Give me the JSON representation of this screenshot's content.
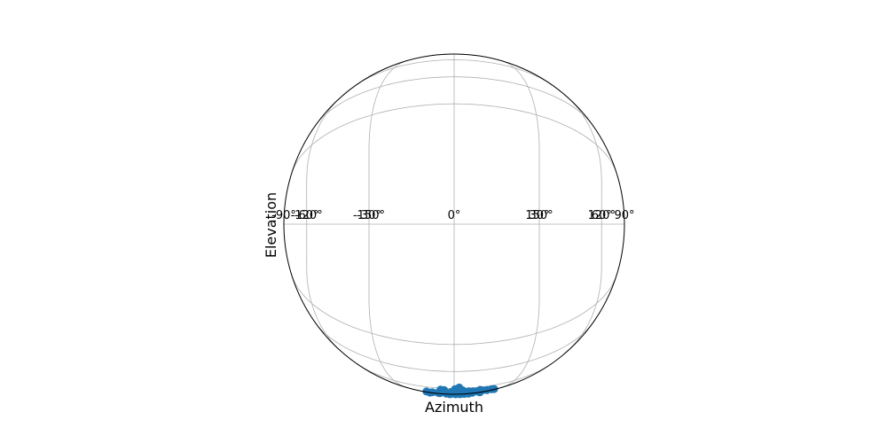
{
  "chart_data": {
    "type": "scatter",
    "projection": "orthographic-globe",
    "xlabel": "Azimuth",
    "ylabel": "Elevation",
    "x_tick_labels": [
      "-150°",
      "-120°",
      "-90°",
      "-60°",
      "-30°",
      "0°",
      "30°",
      "60°",
      "90°",
      "120°",
      "150°"
    ],
    "x_ticks": [
      -150,
      -120,
      -90,
      -60,
      -30,
      0,
      30,
      60,
      90,
      120,
      150
    ],
    "grid": true,
    "series": [
      {
        "color": "#1f77b4",
        "points": [
          {
            "az": -16,
            "el": -59
          },
          {
            "az": -3,
            "el": -60
          },
          {
            "az": 1,
            "el": -61
          },
          {
            "az": 4,
            "el": -61
          },
          {
            "az": 7,
            "el": -61
          },
          {
            "az": 10,
            "el": -61
          },
          {
            "az": 17,
            "el": -59
          },
          {
            "az": 29,
            "el": -61
          },
          {
            "az": -21,
            "el": -63
          },
          {
            "az": -17,
            "el": -64
          },
          {
            "az": -11,
            "el": -64
          },
          {
            "az": -6,
            "el": -64
          },
          {
            "az": -2,
            "el": -64
          },
          {
            "az": 2,
            "el": -64
          },
          {
            "az": 6,
            "el": -64
          },
          {
            "az": 10,
            "el": -64
          },
          {
            "az": 14,
            "el": -64
          },
          {
            "az": 20,
            "el": -64
          },
          {
            "az": 26,
            "el": -64
          },
          {
            "az": 29,
            "el": -63
          },
          {
            "az": -13,
            "el": -65
          },
          {
            "az": -7,
            "el": -66
          },
          {
            "az": 0,
            "el": -66
          },
          {
            "az": 6,
            "el": -66
          },
          {
            "az": 12,
            "el": -66
          },
          {
            "az": 19,
            "el": -66
          },
          {
            "az": 24,
            "el": -66
          },
          {
            "az": 2,
            "el": -67
          },
          {
            "az": 8,
            "el": -67
          },
          {
            "az": 17,
            "el": -68
          },
          {
            "az": 24,
            "el": -68
          },
          {
            "az": -3,
            "el": -69
          },
          {
            "az": 5,
            "el": -69
          },
          {
            "az": 14,
            "el": -69
          },
          {
            "az": 3,
            "el": -70
          },
          {
            "az": 10,
            "el": -70
          },
          {
            "az": -15,
            "el": -72
          },
          {
            "az": -11,
            "el": -72
          },
          {
            "az": 5,
            "el": -72
          },
          {
            "az": 9,
            "el": -72
          },
          {
            "az": 1,
            "el": -74
          },
          {
            "az": 7,
            "el": -76
          }
        ]
      }
    ]
  }
}
